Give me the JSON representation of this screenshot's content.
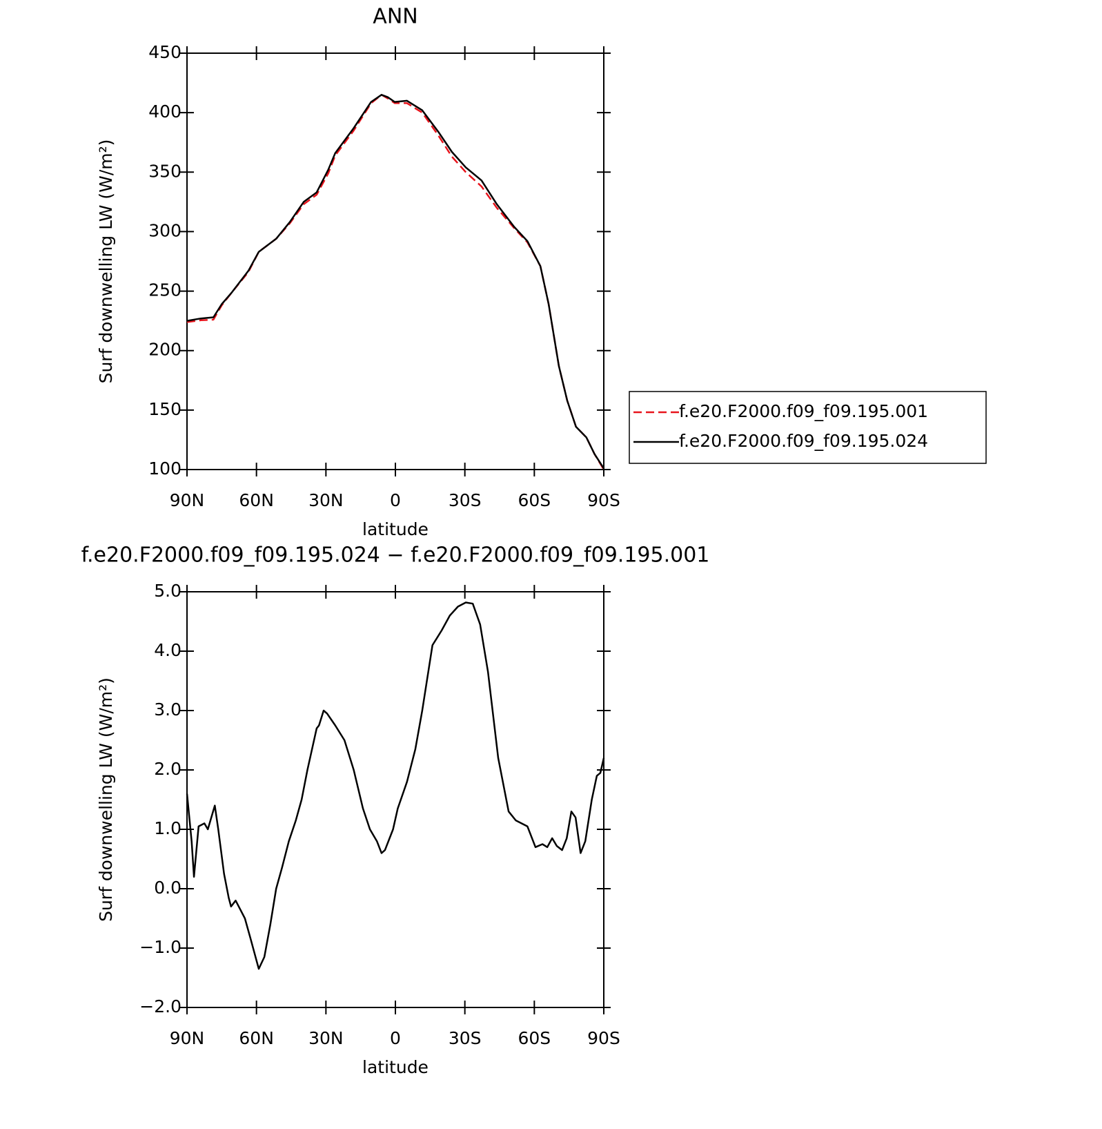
{
  "chart_data": [
    {
      "type": "line",
      "title": "ANN",
      "xlabel": "latitude",
      "ylabel": "Surf downwelling LW (W/m²)",
      "x": [
        90,
        84,
        78.6,
        75,
        70.6,
        63.5,
        59,
        51.5,
        45.6,
        39.6,
        34,
        29,
        26,
        18,
        10.5,
        6,
        3.3,
        0.3,
        -5,
        -11.6,
        -18.5,
        -24.4,
        -30.4,
        -37.2,
        -43.8,
        -51.3,
        -57,
        -62.6,
        -66.2,
        -70.6,
        -74.2,
        -78,
        -82.5,
        -86,
        -90
      ],
      "series": [
        {
          "name": "f.e20.F2000.f09_f09.195.001",
          "color": "#e8141c",
          "dashed": true,
          "values": [
            224,
            225.5,
            226,
            238,
            249,
            266,
            283,
            294,
            307,
            323,
            331,
            349,
            364,
            385,
            408,
            415,
            412,
            408,
            408,
            400,
            381,
            363,
            350,
            338,
            320,
            303,
            291,
            271,
            239,
            187,
            158,
            136,
            127,
            113,
            100
          ]
        },
        {
          "name": "f.e20.F2000.f09_f09.195.024",
          "color": "#000000",
          "dashed": false,
          "values": [
            225,
            227,
            228,
            239,
            249,
            267,
            283,
            294,
            308,
            325,
            333,
            352,
            366,
            387,
            409,
            415,
            413,
            409,
            410,
            402,
            384,
            367,
            354,
            343,
            323,
            304,
            292,
            271,
            239,
            187,
            158,
            136,
            127,
            113,
            101
          ]
        }
      ],
      "xlim": [
        90,
        -90
      ],
      "xticks": [
        {
          "value": 90,
          "label": "90N"
        },
        {
          "value": 60,
          "label": "60N"
        },
        {
          "value": 30,
          "label": "30N"
        },
        0,
        {
          "value": -30,
          "label": "30S"
        },
        {
          "value": -60,
          "label": "60S"
        },
        {
          "value": -90,
          "label": "90S"
        }
      ],
      "ylim": [
        100,
        450
      ],
      "yticks": [
        100,
        150,
        200,
        250,
        300,
        350,
        400,
        450
      ],
      "legend": "right"
    },
    {
      "type": "line",
      "title": "f.e20.F2000.f09_f09.195.024 − f.e20.F2000.f09_f09.195.001",
      "xlabel": "latitude",
      "ylabel": "Surf downwelling LW (W/m²)",
      "x": [
        90,
        88,
        87,
        85,
        82.5,
        81,
        78,
        76.5,
        74,
        72,
        71,
        69,
        67,
        65,
        62.5,
        59,
        56.6,
        54,
        51.5,
        49,
        46,
        43,
        40.5,
        38,
        36,
        34,
        33,
        31,
        29.5,
        26,
        22,
        18,
        14,
        11,
        8,
        6,
        4.5,
        1,
        -1,
        -5,
        -8.6,
        -11.6,
        -16,
        -20,
        -23.5,
        -27,
        -30.4,
        -33.4,
        -36.6,
        -40,
        -44.4,
        -48.9,
        -52,
        -57,
        -60.5,
        -63.5,
        -65.6,
        -67.7,
        -69.7,
        -72,
        -74,
        -76,
        -77.8,
        -80,
        -82,
        -84.8,
        -87,
        -88.5,
        -90
      ],
      "color": "#000000",
      "values": [
        1.6,
        0.8,
        0.2,
        1.05,
        1.1,
        1.0,
        1.4,
        1.0,
        0.25,
        -0.15,
        -0.3,
        -0.2,
        -0.35,
        -0.5,
        -0.85,
        -1.35,
        -1.15,
        -0.6,
        0.0,
        0.35,
        0.8,
        1.15,
        1.5,
        2.0,
        2.35,
        2.7,
        2.75,
        3.0,
        2.95,
        2.75,
        2.5,
        2.0,
        1.35,
        1.0,
        0.8,
        0.6,
        0.65,
        1.0,
        1.35,
        1.8,
        2.35,
        3.0,
        4.1,
        4.35,
        4.6,
        4.75,
        4.82,
        4.8,
        4.45,
        3.65,
        2.2,
        1.3,
        1.15,
        1.05,
        0.7,
        0.75,
        0.7,
        0.85,
        0.72,
        0.65,
        0.85,
        1.3,
        1.2,
        0.6,
        0.8,
        1.5,
        1.9,
        1.95,
        2.2
      ],
      "xlim": [
        90,
        -90
      ],
      "xticks": [
        {
          "value": 90,
          "label": "90N"
        },
        {
          "value": 60,
          "label": "60N"
        },
        {
          "value": 30,
          "label": "30N"
        },
        0,
        {
          "value": -30,
          "label": "30S"
        },
        {
          "value": -60,
          "label": "60S"
        },
        {
          "value": -90,
          "label": "90S"
        }
      ],
      "ylim": [
        -2,
        5
      ],
      "yticks": [
        {
          "value": -2,
          "label": "−2.0"
        },
        {
          "value": -1,
          "label": "−1.0"
        },
        {
          "value": 0,
          "label": "0.0"
        },
        {
          "value": 1,
          "label": "1.0"
        },
        {
          "value": 2,
          "label": "2.0"
        },
        {
          "value": 3,
          "label": "3.0"
        },
        {
          "value": 4,
          "label": "4.0"
        },
        {
          "value": 5,
          "label": "5.0"
        }
      ]
    }
  ]
}
